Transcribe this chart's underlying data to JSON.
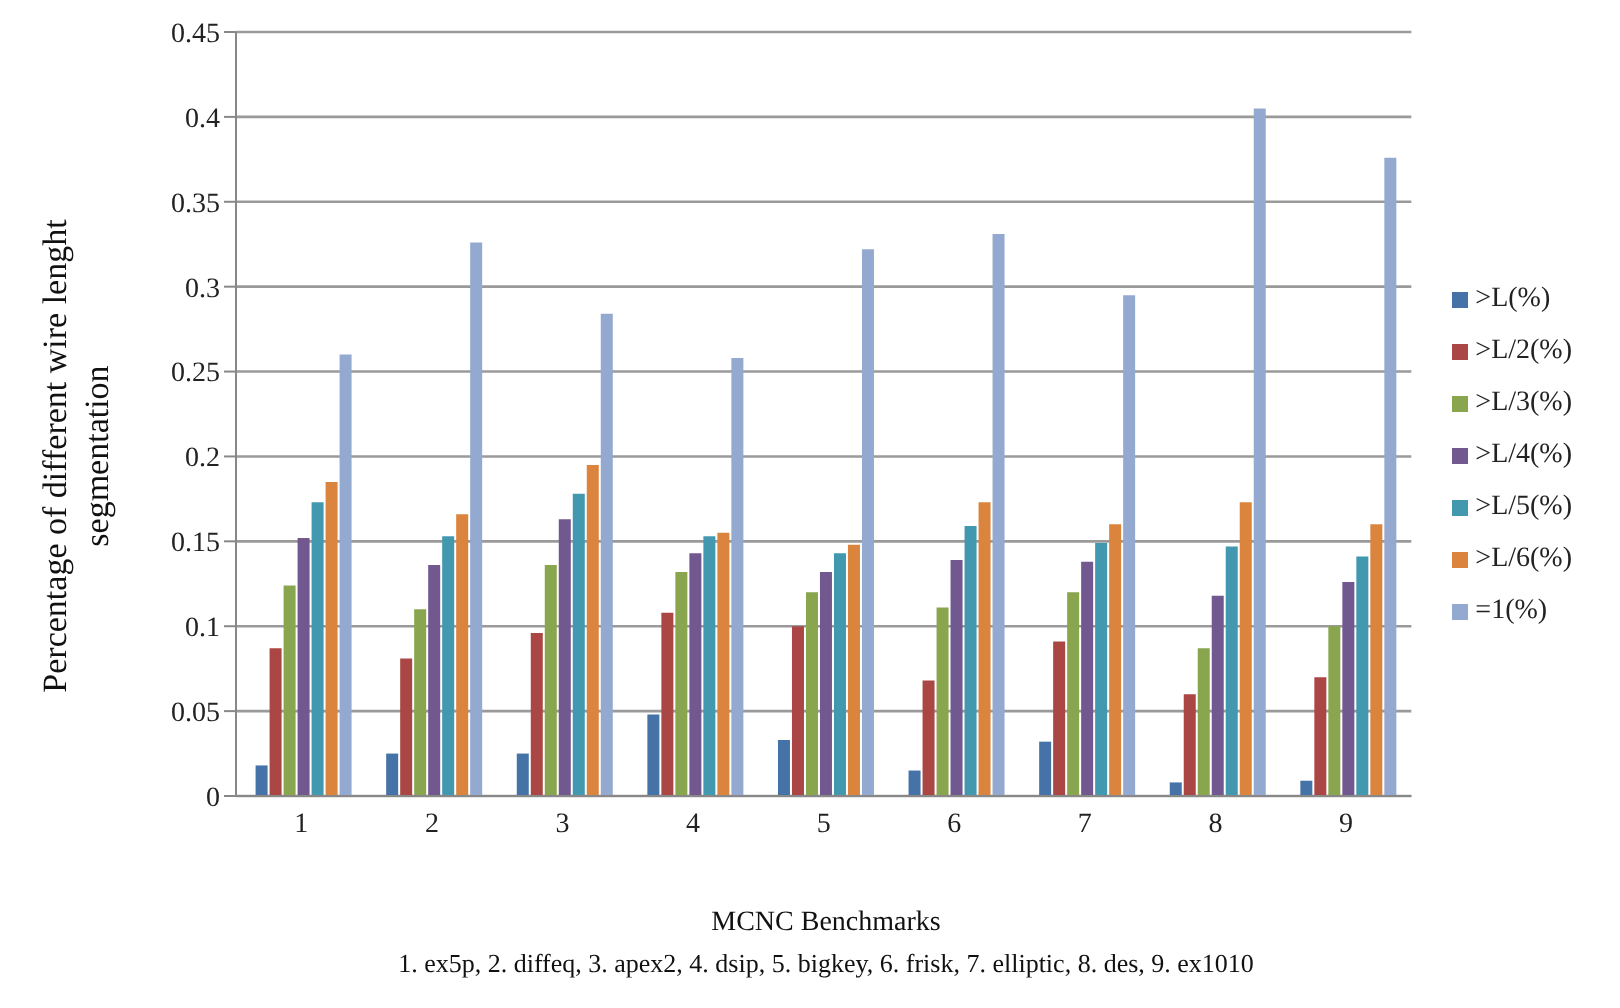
{
  "chart_data": {
    "type": "bar",
    "xlabel": "MCNC Benchmarks",
    "ylabel": "Percentage of  different wire lenght segmentation",
    "annotations": [
      "1. ex5p, 2. diffeq, 3. apex2, 4. dsip, 5. bigkey, 6. frisk, 7. elliptic, 8. des, 9. ex1010"
    ],
    "categories": [
      "1",
      "2",
      "3",
      "4",
      "5",
      "6",
      "7",
      "8",
      "9"
    ],
    "series": [
      {
        "name": ">L(%)",
        "color": "#4572a7",
        "values": [
          0.018,
          0.025,
          0.025,
          0.048,
          0.033,
          0.015,
          0.032,
          0.008,
          0.009
        ]
      },
      {
        "name": ">L/2(%)",
        "color": "#aa4643",
        "values": [
          0.087,
          0.081,
          0.096,
          0.108,
          0.1,
          0.068,
          0.091,
          0.06,
          0.07
        ]
      },
      {
        "name": ">L/3(%)",
        "color": "#89a54e",
        "values": [
          0.124,
          0.11,
          0.136,
          0.132,
          0.12,
          0.111,
          0.12,
          0.087,
          0.1
        ]
      },
      {
        "name": ">L/4(%)",
        "color": "#71588f",
        "values": [
          0.152,
          0.136,
          0.163,
          0.143,
          0.132,
          0.139,
          0.138,
          0.118,
          0.126
        ]
      },
      {
        "name": ">L/5(%)",
        "color": "#4198af",
        "values": [
          0.173,
          0.153,
          0.178,
          0.153,
          0.143,
          0.159,
          0.149,
          0.147,
          0.141
        ]
      },
      {
        "name": ">L/6(%)",
        "color": "#db843d",
        "values": [
          0.185,
          0.166,
          0.195,
          0.155,
          0.148,
          0.173,
          0.16,
          0.173,
          0.16
        ]
      },
      {
        "name": "=1(%)",
        "color": "#93a9cf",
        "values": [
          0.26,
          0.326,
          0.284,
          0.258,
          0.322,
          0.331,
          0.295,
          0.405,
          0.376
        ]
      }
    ],
    "ylim": [
      0,
      0.45
    ],
    "yticks": [
      0,
      0.05,
      0.1,
      0.15,
      0.2,
      0.25,
      0.3,
      0.35,
      0.4,
      0.45
    ],
    "grid": "y",
    "legend": "right"
  }
}
